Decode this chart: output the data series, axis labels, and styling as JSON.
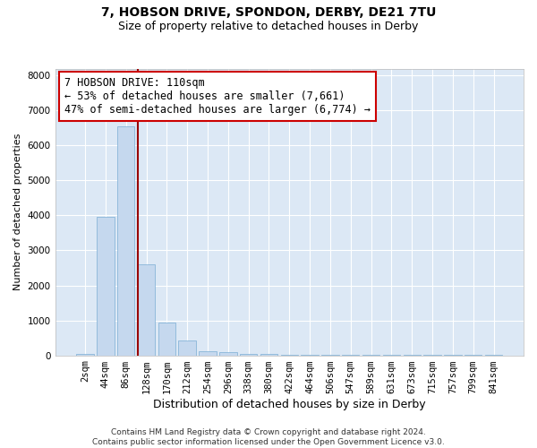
{
  "title1": "7, HOBSON DRIVE, SPONDON, DERBY, DE21 7TU",
  "title2": "Size of property relative to detached houses in Derby",
  "xlabel": "Distribution of detached houses by size in Derby",
  "ylabel": "Number of detached properties",
  "bar_categories": [
    "2sqm",
    "44sqm",
    "86sqm",
    "128sqm",
    "170sqm",
    "212sqm",
    "254sqm",
    "296sqm",
    "338sqm",
    "380sqm",
    "422sqm",
    "464sqm",
    "506sqm",
    "547sqm",
    "589sqm",
    "631sqm",
    "673sqm",
    "715sqm",
    "757sqm",
    "799sqm",
    "841sqm"
  ],
  "bar_values": [
    50,
    3950,
    6550,
    2600,
    950,
    430,
    130,
    90,
    40,
    40,
    10,
    5,
    5,
    5,
    5,
    5,
    5,
    5,
    5,
    5,
    5
  ],
  "bar_color": "#c5d8ee",
  "bar_edge_color": "#7badd4",
  "plot_bg_color": "#dce8f5",
  "fig_bg_color": "#ffffff",
  "grid_color": "#ffffff",
  "vline_color": "#990000",
  "ylim": [
    0,
    8200
  ],
  "yticks": [
    0,
    1000,
    2000,
    3000,
    4000,
    5000,
    6000,
    7000,
    8000
  ],
  "annotation_text": "7 HOBSON DRIVE: 110sqm\n← 53% of detached houses are smaller (7,661)\n47% of semi-detached houses are larger (6,774) →",
  "annotation_box_facecolor": "#ffffff",
  "annotation_box_edge": "#cc0000",
  "footer_text": "Contains HM Land Registry data © Crown copyright and database right 2024.\nContains public sector information licensed under the Open Government Licence v3.0.",
  "title1_fontsize": 10,
  "title2_fontsize": 9,
  "xlabel_fontsize": 9,
  "ylabel_fontsize": 8,
  "tick_fontsize": 7.5,
  "annotation_fontsize": 8.5,
  "footer_fontsize": 6.5
}
